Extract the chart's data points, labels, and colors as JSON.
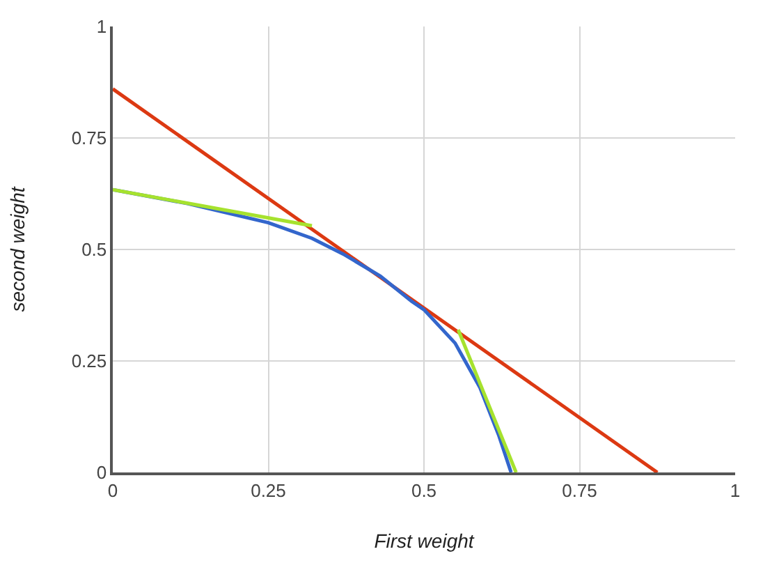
{
  "chart_data": {
    "type": "line",
    "xlabel": "First weight",
    "ylabel": "second weight",
    "xlim": [
      0,
      1
    ],
    "ylim": [
      0,
      1
    ],
    "xticks": [
      0,
      0.25,
      0.5,
      0.75,
      1
    ],
    "yticks": [
      0,
      0.25,
      0.5,
      0.75,
      1
    ],
    "grid": true,
    "marker": "none",
    "line_style": "solid",
    "series": [
      {
        "color": "#dc3912",
        "x": [
          0,
          0.875
        ],
        "values": [
          0.86,
          0
        ]
      },
      {
        "color": "#3366cc",
        "x": [
          0,
          0.12,
          0.25,
          0.32,
          0.37,
          0.43,
          0.48,
          0.5,
          0.55,
          0.59,
          0.62,
          0.64
        ],
        "values": [
          0.634,
          0.603,
          0.56,
          0.525,
          0.49,
          0.44,
          0.384,
          0.365,
          0.29,
          0.19,
          0.084,
          0
        ]
      },
      {
        "color": "#a6e22e",
        "x": [
          0,
          0.32
        ],
        "values": [
          0.634,
          0.553
        ]
      },
      {
        "color": "#a6e22e",
        "x": [
          0.555,
          0.648
        ],
        "values": [
          0.32,
          0
        ]
      }
    ]
  }
}
